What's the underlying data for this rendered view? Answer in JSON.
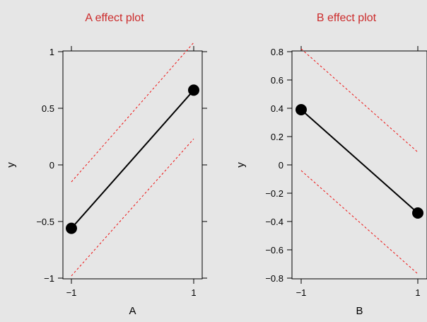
{
  "theme": {
    "background": "#e6e6e6",
    "title_color": "#cc2b2b",
    "line_color": "#000000",
    "ci_color": "#ee1111",
    "axis_color": "#000000"
  },
  "chart_data": [
    {
      "type": "line",
      "title": "A effect plot",
      "xlabel": "A",
      "ylabel": "y",
      "x": [
        -1,
        1
      ],
      "series": [
        {
          "values": [
            -0.56,
            0.66
          ]
        }
      ],
      "ci_lower": [
        -0.98,
        0.23
      ],
      "ci_upper": [
        -0.15,
        1.08
      ],
      "xlim": [
        -1,
        1
      ],
      "ylim": [
        -1,
        1
      ],
      "xticks": [
        -1,
        1
      ],
      "xtick_labels": [
        "−1",
        "1"
      ],
      "yticks": [
        -1,
        -0.5,
        0,
        0.5,
        1
      ],
      "ytick_labels": [
        "−1",
        "−0.5",
        "0",
        "0.5",
        "1"
      ],
      "grid": false
    },
    {
      "type": "line",
      "title": "B effect plot",
      "xlabel": "B",
      "ylabel": "y",
      "x": [
        -1,
        1
      ],
      "series": [
        {
          "values": [
            0.39,
            -0.34
          ]
        }
      ],
      "ci_lower": [
        -0.04,
        -0.77
      ],
      "ci_upper": [
        0.82,
        0.09
      ],
      "xlim": [
        -1,
        1
      ],
      "ylim": [
        -0.8,
        0.8
      ],
      "xticks": [
        -1,
        1
      ],
      "xtick_labels": [
        "−1",
        "1"
      ],
      "yticks": [
        -0.8,
        -0.6,
        -0.4,
        -0.2,
        0,
        0.2,
        0.4,
        0.6,
        0.8
      ],
      "ytick_labels": [
        "−0.8",
        "−0.6",
        "−0.4",
        "−0.2",
        "0",
        "0.2",
        "0.4",
        "0.6",
        "0.8"
      ],
      "grid": false
    }
  ]
}
